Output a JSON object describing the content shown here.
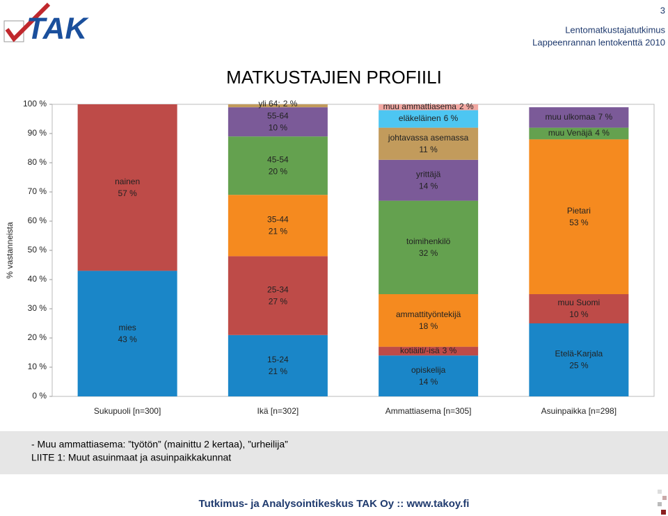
{
  "header": {
    "logo": "TAK",
    "page_number": "3",
    "line1": "Lentomatkustajatutkimus",
    "line2": "Lappeenrannan lentokenttä 2010"
  },
  "chart_data": {
    "type": "stacked_bar",
    "title": "MATKUSTAJIEN PROFIILI",
    "ylabel": "% vastanneista",
    "ylim": [
      0,
      100
    ],
    "yticks": [
      {
        "value": 0,
        "label": "0 %"
      },
      {
        "value": 10,
        "label": "10 %"
      },
      {
        "value": 20,
        "label": "20 %"
      },
      {
        "value": 30,
        "label": "30 %"
      },
      {
        "value": 40,
        "label": "40 %"
      },
      {
        "value": 50,
        "label": "50 %"
      },
      {
        "value": 60,
        "label": "60 %"
      },
      {
        "value": 70,
        "label": "70 %"
      },
      {
        "value": 80,
        "label": "80 %"
      },
      {
        "value": 90,
        "label": "90 %"
      },
      {
        "value": 100,
        "label": "100 %"
      }
    ],
    "stacks": [
      {
        "category": "Sukupuoli [n=300]",
        "segments": [
          {
            "name": "mies",
            "value": 43,
            "value_label": "43 %",
            "color": "#1a86c8"
          },
          {
            "name": "nainen",
            "value": 57,
            "value_label": "57 %",
            "color": "#be4b48"
          }
        ]
      },
      {
        "category": "Ikä [n=302]",
        "segments": [
          {
            "name": "15-24",
            "value": 21,
            "value_label": "21 %",
            "color": "#1a86c8"
          },
          {
            "name": "25-34",
            "value": 27,
            "value_label": "27 %",
            "color": "#be4b48"
          },
          {
            "name": "35-44",
            "value": 21,
            "value_label": "21 %",
            "color": "#f58a1f"
          },
          {
            "name": "45-54",
            "value": 20,
            "value_label": "20 %",
            "color": "#64a14f"
          },
          {
            "name": "55-64",
            "value": 10,
            "value_label": "10 %",
            "color": "#7b5a98"
          },
          {
            "name": "yli 64;",
            "value": 2,
            "value_label": "2 %",
            "color": "#c29b5c",
            "inline": true
          }
        ]
      },
      {
        "category": "Ammattiasema [n=305]",
        "segments": [
          {
            "name": "opiskelija",
            "value": 14,
            "value_label": "14 %",
            "color": "#1a86c8"
          },
          {
            "name": "kotiäiti/-isä",
            "value": 3,
            "value_label": "3 %",
            "color": "#be4b48",
            "inline": true
          },
          {
            "name": "ammattityöntekijä",
            "value": 18,
            "value_label": "18 %",
            "color": "#f58a1f"
          },
          {
            "name": "toimihenkilö",
            "value": 32,
            "value_label": "32 %",
            "color": "#64a14f"
          },
          {
            "name": "yrittäjä",
            "value": 14,
            "value_label": "14 %",
            "color": "#7b5a98"
          },
          {
            "name": "johtavassa asemassa",
            "value": 11,
            "value_label": "11 %",
            "color": "#c29b5c"
          },
          {
            "name": "eläkeläinen",
            "value": 6,
            "value_label": "6 %",
            "color": "#4dc6f2",
            "inline": true
          },
          {
            "name": "muu ammattiasema",
            "value": 2,
            "value_label": "2 %",
            "color": "#f2a8a2",
            "inline": true
          }
        ]
      },
      {
        "category": "Asuinpaikka [n=298]",
        "segments": [
          {
            "name": "Etelä-Karjala",
            "value": 25,
            "value_label": "25 %",
            "color": "#1a86c8"
          },
          {
            "name": "muu Suomi",
            "value": 10,
            "value_label": "10 %",
            "color": "#be4b48"
          },
          {
            "name": "Pietari",
            "value": 53,
            "value_label": "53 %",
            "color": "#f58a1f"
          },
          {
            "name": "muu Venäjä",
            "value": 4,
            "value_label": "4 %",
            "color": "#64a14f",
            "inline": true
          },
          {
            "name": "muu ulkomaa",
            "value": 7,
            "value_label": "7 %",
            "color": "#7b5a98",
            "inline": true
          }
        ]
      }
    ]
  },
  "notes": [
    "- Muu ammattiasema: ”työtön” (mainittu 2 kertaa), ”urheilija”",
    "LIITE 1: Muut asuinmaat ja asuinpaikkakunnat"
  ],
  "footer": "Tutkimus- ja Analysointikeskus TAK Oy :: www.takoy.fi"
}
